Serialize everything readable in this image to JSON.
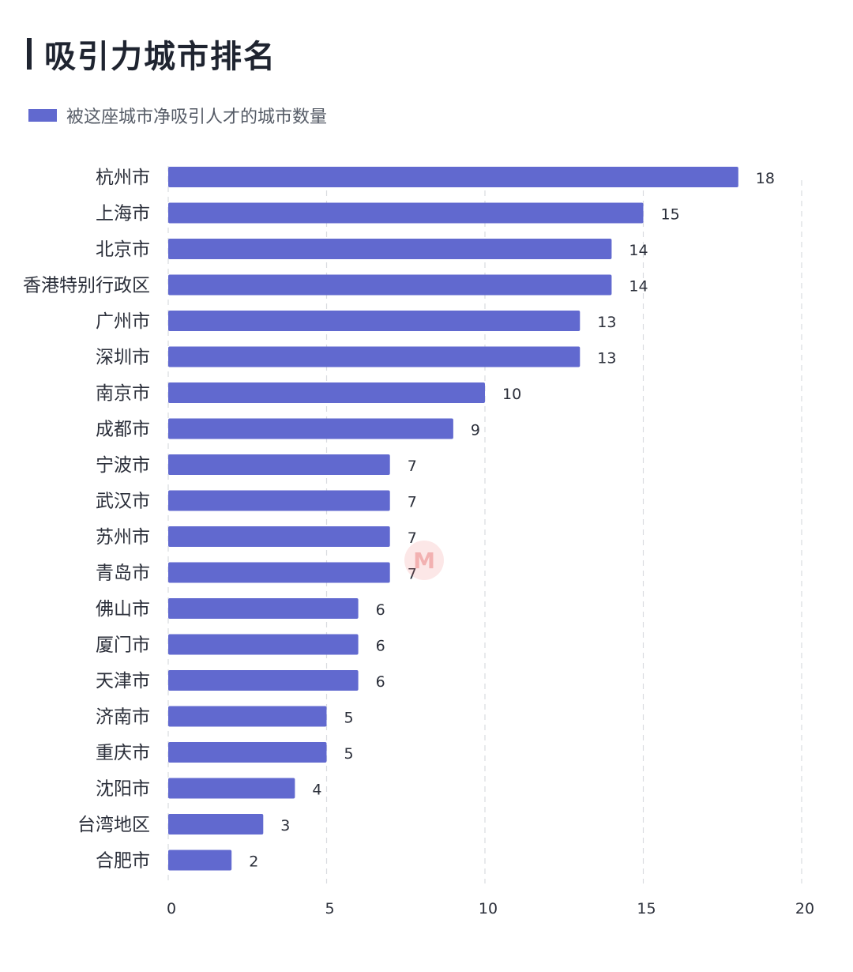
{
  "header": {
    "title": "吸引力城市排名"
  },
  "colors": {
    "bar": "#6169CF",
    "grid": "#d9dbe0",
    "label": "#2b2f3a",
    "tick": "#2b2f3a"
  },
  "chart_data": {
    "type": "bar",
    "orientation": "horizontal",
    "title": "吸引力城市排名",
    "legend": [
      "被这座城市净吸引人才的城市数量"
    ],
    "legend_position": "top-left",
    "categories": [
      "杭州市",
      "上海市",
      "北京市",
      "香港特别行政区",
      "广州市",
      "深圳市",
      "南京市",
      "成都市",
      "宁波市",
      "武汉市",
      "苏州市",
      "青岛市",
      "佛山市",
      "厦门市",
      "天津市",
      "济南市",
      "重庆市",
      "沈阳市",
      "台湾地区",
      "合肥市"
    ],
    "series": [
      {
        "name": "被这座城市净吸引人才的城市数量",
        "values": [
          18,
          15,
          14,
          14,
          13,
          13,
          10,
          9,
          7,
          7,
          7,
          7,
          6,
          6,
          6,
          5,
          5,
          4,
          3,
          2
        ]
      }
    ],
    "value_labels": [
      18,
      15,
      14,
      14,
      13,
      13,
      10,
      9,
      7,
      7,
      7,
      7,
      6,
      6,
      6,
      5,
      5,
      4,
      3,
      2
    ],
    "xlim": [
      0,
      20
    ],
    "xticks": [
      0,
      5,
      10,
      15,
      20
    ],
    "grid": true,
    "xlabel": "",
    "ylabel": ""
  }
}
